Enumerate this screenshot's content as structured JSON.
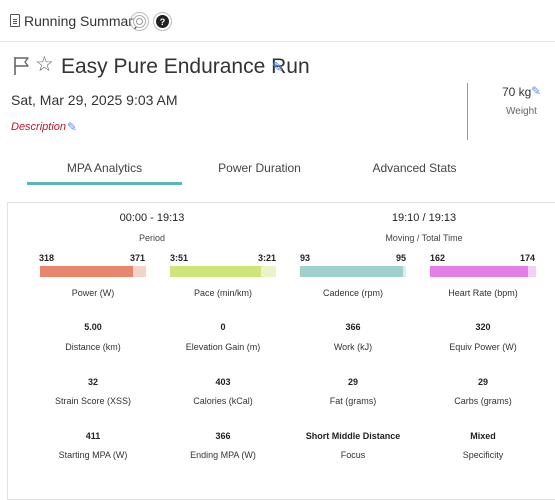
{
  "header": {
    "app_title": "Running Summary",
    "icons": [
      "doc-icon",
      "badge-icon",
      "help-icon"
    ],
    "help_glyph": "?"
  },
  "workout": {
    "title": "Easy Pure Endurance Run",
    "date": "Sat, Mar 29, 2025 9:03 AM",
    "description_label": "Description",
    "weight_value": "70 kg",
    "weight_label": "Weight"
  },
  "tabs": [
    {
      "label": "MPA Analytics",
      "active": true
    },
    {
      "label": "Power Duration",
      "active": false
    },
    {
      "label": "Advanced Stats",
      "active": false
    }
  ],
  "summary": {
    "period_range": "00:00 - 19:13",
    "period_label": "Period",
    "moving_time": "19:10 / 19:13",
    "moving_label": "Moving / Total Time"
  },
  "range_bars": [
    {
      "min": "318",
      "max": "371",
      "label": "Power (W)",
      "fill_fraction": 0.88,
      "color": "#e8866d",
      "rest_color": "#f6d3c8"
    },
    {
      "min": "3:51",
      "max": "3:21",
      "label": "Pace (min/km)",
      "fill_fraction": 0.86,
      "color": "#cfe57a",
      "rest_color": "#eaf4c6"
    },
    {
      "min": "93",
      "max": "95",
      "label": "Cadence (rpm)",
      "fill_fraction": 0.97,
      "color": "#9fd1cb",
      "rest_color": "#d9efec"
    },
    {
      "min": "162",
      "max": "174",
      "label": "Heart Rate (bpm)",
      "fill_fraction": 0.92,
      "color": "#e57de8",
      "rest_color": "#f6cff7"
    }
  ],
  "metrics": [
    {
      "value": "5.00",
      "label": "Distance (km)"
    },
    {
      "value": "0",
      "label": "Elevation Gain (m)"
    },
    {
      "value": "366",
      "label": "Work (kJ)"
    },
    {
      "value": "320",
      "label": "Equiv Power (W)"
    },
    {
      "value": "32",
      "label": "Strain Score (XSS)"
    },
    {
      "value": "403",
      "label": "Calories (kCal)"
    },
    {
      "value": "29",
      "label": "Fat (grams)"
    },
    {
      "value": "29",
      "label": "Carbs (grams)"
    },
    {
      "value": "411",
      "label": "Starting MPA (W)"
    },
    {
      "value": "366",
      "label": "Ending MPA (W)"
    },
    {
      "value": "Short Middle Distance",
      "label": "Focus"
    },
    {
      "value": "Mixed",
      "label": "Specificity"
    }
  ]
}
